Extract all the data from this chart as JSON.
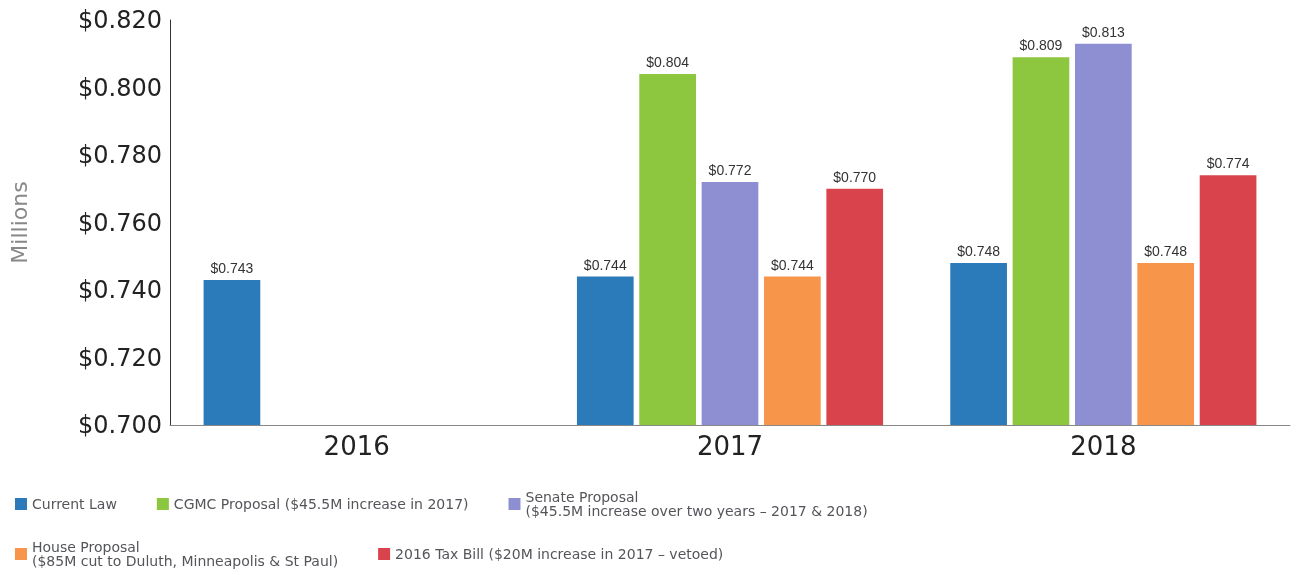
{
  "chart_data": {
    "type": "bar",
    "ylabel": "Millions",
    "categories": [
      "2016",
      "2017",
      "2018"
    ],
    "ylim": [
      0.7,
      0.82
    ],
    "yticks": [
      {
        "value": 0.7,
        "label": "$0.700"
      },
      {
        "value": 0.72,
        "label": "$0.720"
      },
      {
        "value": 0.74,
        "label": "$0.740"
      },
      {
        "value": 0.76,
        "label": "$0.760"
      },
      {
        "value": 0.78,
        "label": "$0.780"
      },
      {
        "value": 0.8,
        "label": "$0.800"
      },
      {
        "value": 0.82,
        "label": "$0.820"
      }
    ],
    "grid": false,
    "legend": "bottom",
    "series": [
      {
        "name": "Current Law",
        "color": "#2b7bba",
        "values": [
          0.743,
          0.744,
          0.748
        ],
        "value_labels": [
          "$0.743",
          "$0.744",
          "$0.748"
        ]
      },
      {
        "name": "CGMC Proposal ($45.5M increase in 2017)",
        "color": "#8dc63f",
        "values": [
          null,
          0.804,
          0.809
        ],
        "value_labels": [
          null,
          "$0.804",
          "$0.809"
        ]
      },
      {
        "name": "Senate Proposal\n($45.5M increase over two years – 2017 & 2018)",
        "color": "#8e8fd3",
        "values": [
          null,
          0.772,
          0.813
        ],
        "value_labels": [
          null,
          "$0.772",
          "$0.813"
        ]
      },
      {
        "name": "House Proposal\n($85M cut to Duluth, Minneapolis & St Paul)",
        "color": "#f7964a",
        "values": [
          null,
          0.744,
          0.748
        ],
        "value_labels": [
          null,
          "$0.744",
          "$0.748"
        ]
      },
      {
        "name": "2016 Tax Bill ($20M increase in 2017 – vetoed)",
        "color": "#d9434b",
        "values": [
          null,
          0.77,
          0.774
        ],
        "value_labels": [
          null,
          "$0.770",
          "$0.774"
        ]
      }
    ]
  }
}
